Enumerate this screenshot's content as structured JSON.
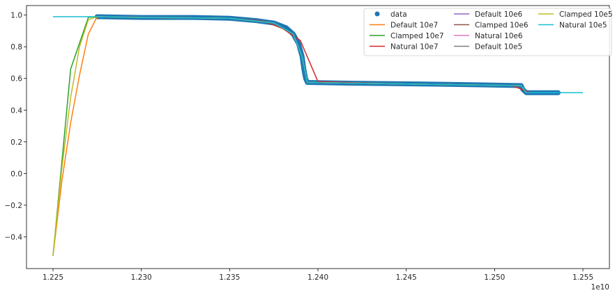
{
  "chart_data": {
    "type": "line",
    "title": "",
    "xlabel": "",
    "ylabel": "",
    "x_offset_label": "1e10",
    "xlim": [
      1.2235,
      1.2565
    ],
    "ylim": [
      -0.6,
      1.06
    ],
    "grid": false,
    "legend_placement": "top-right",
    "legend_columns": 3,
    "x_ticks": [
      1.225,
      1.23,
      1.235,
      1.24,
      1.245,
      1.25,
      1.255
    ],
    "x_tick_labels": [
      "1.225",
      "1.230",
      "1.235",
      "1.240",
      "1.245",
      "1.250",
      "1.255"
    ],
    "y_ticks": [
      -0.4,
      -0.2,
      0.0,
      0.2,
      0.4,
      0.6,
      0.8,
      1.0
    ],
    "y_tick_labels": [
      "−0.4",
      "−0.2",
      "0.0",
      "0.2",
      "0.4",
      "0.6",
      "0.8",
      "1.0"
    ],
    "data_points": {
      "name": "data",
      "color": "#1f77b4",
      "x_range": [
        1.2275,
        1.2536
      ],
      "description_points": [
        [
          1.2275,
          0.99
        ],
        [
          1.23,
          0.985
        ],
        [
          1.233,
          0.985
        ],
        [
          1.235,
          0.98
        ],
        [
          1.2365,
          0.965
        ],
        [
          1.2375,
          0.95
        ],
        [
          1.2382,
          0.92
        ],
        [
          1.2386,
          0.88
        ],
        [
          1.2389,
          0.82
        ],
        [
          1.2391,
          0.74
        ],
        [
          1.2392,
          0.66
        ],
        [
          1.2393,
          0.6
        ],
        [
          1.2394,
          0.575
        ],
        [
          1.242,
          0.57
        ],
        [
          1.246,
          0.565
        ],
        [
          1.249,
          0.56
        ],
        [
          1.2515,
          0.555
        ],
        [
          1.2516,
          0.53
        ],
        [
          1.2518,
          0.51
        ],
        [
          1.2536,
          0.51
        ]
      ]
    },
    "series": [
      {
        "name": "Default 10e7",
        "color": "#ff7f0e",
        "points": [
          [
            1.225,
            -0.52
          ],
          [
            1.2255,
            -0.05
          ],
          [
            1.226,
            0.32
          ],
          [
            1.2265,
            0.62
          ],
          [
            1.227,
            0.88
          ],
          [
            1.2275,
            0.99
          ],
          [
            1.23,
            0.985
          ],
          [
            1.235,
            0.98
          ],
          [
            1.2375,
            0.95
          ],
          [
            1.2386,
            0.88
          ],
          [
            1.2391,
            0.74
          ],
          [
            1.2394,
            0.575
          ],
          [
            1.245,
            0.565
          ],
          [
            1.2515,
            0.555
          ],
          [
            1.2518,
            0.51
          ],
          [
            1.2536,
            0.51
          ]
        ]
      },
      {
        "name": "Clamped 10e7",
        "color": "#2ca02c",
        "points": [
          [
            1.225,
            -0.52
          ],
          [
            1.226,
            0.66
          ],
          [
            1.227,
            0.985
          ],
          [
            1.2275,
            0.99
          ],
          [
            1.23,
            0.985
          ],
          [
            1.235,
            0.98
          ],
          [
            1.2375,
            0.95
          ],
          [
            1.2386,
            0.88
          ],
          [
            1.2391,
            0.74
          ],
          [
            1.2394,
            0.575
          ],
          [
            1.245,
            0.565
          ],
          [
            1.2515,
            0.555
          ],
          [
            1.2518,
            0.51
          ],
          [
            1.2536,
            0.51
          ]
        ]
      },
      {
        "name": "Natural 10e7",
        "color": "#d62728",
        "points": [
          [
            1.2275,
            0.99
          ],
          [
            1.23,
            0.985
          ],
          [
            1.235,
            0.98
          ],
          [
            1.237,
            0.96
          ],
          [
            1.238,
            0.915
          ],
          [
            1.239,
            0.84
          ],
          [
            1.24,
            0.58
          ],
          [
            1.245,
            0.565
          ],
          [
            1.251,
            0.555
          ],
          [
            1.252,
            0.51
          ],
          [
            1.2536,
            0.51
          ]
        ]
      },
      {
        "name": "Default 10e6",
        "color": "#9467bd",
        "points": [
          [
            1.2275,
            0.99
          ],
          [
            1.235,
            0.98
          ],
          [
            1.2375,
            0.95
          ],
          [
            1.2386,
            0.88
          ],
          [
            1.2391,
            0.74
          ],
          [
            1.2394,
            0.575
          ],
          [
            1.245,
            0.565
          ],
          [
            1.2515,
            0.555
          ],
          [
            1.2518,
            0.51
          ],
          [
            1.2536,
            0.51
          ]
        ]
      },
      {
        "name": "Clamped 10e6",
        "color": "#8c564b",
        "points": [
          [
            1.2275,
            0.99
          ],
          [
            1.235,
            0.98
          ],
          [
            1.2375,
            0.95
          ],
          [
            1.2386,
            0.88
          ],
          [
            1.2391,
            0.74
          ],
          [
            1.2394,
            0.575
          ],
          [
            1.245,
            0.565
          ],
          [
            1.2515,
            0.555
          ],
          [
            1.2518,
            0.51
          ],
          [
            1.2536,
            0.51
          ]
        ]
      },
      {
        "name": "Natural 10e6",
        "color": "#e377c2",
        "points": [
          [
            1.2275,
            0.99
          ],
          [
            1.235,
            0.98
          ],
          [
            1.2375,
            0.95
          ],
          [
            1.2386,
            0.88
          ],
          [
            1.2391,
            0.74
          ],
          [
            1.2394,
            0.575
          ],
          [
            1.245,
            0.565
          ],
          [
            1.2515,
            0.555
          ],
          [
            1.2518,
            0.51
          ],
          [
            1.2536,
            0.51
          ]
        ]
      },
      {
        "name": "Default 10e5",
        "color": "#7f7f7f",
        "points": [
          [
            1.2275,
            0.99
          ],
          [
            1.235,
            0.98
          ],
          [
            1.2375,
            0.95
          ],
          [
            1.2386,
            0.88
          ],
          [
            1.2391,
            0.74
          ],
          [
            1.2394,
            0.575
          ],
          [
            1.245,
            0.565
          ],
          [
            1.2515,
            0.555
          ],
          [
            1.2518,
            0.51
          ],
          [
            1.2536,
            0.51
          ]
        ]
      },
      {
        "name": "Clamped 10e5",
        "color": "#bcbd22",
        "points": [
          [
            1.225,
            -0.52
          ],
          [
            1.2255,
            0.03
          ],
          [
            1.226,
            0.48
          ],
          [
            1.2265,
            0.8
          ],
          [
            1.227,
            0.97
          ],
          [
            1.2275,
            0.99
          ],
          [
            1.23,
            0.985
          ],
          [
            1.235,
            0.98
          ],
          [
            1.2375,
            0.95
          ],
          [
            1.2386,
            0.88
          ],
          [
            1.2391,
            0.74
          ],
          [
            1.2394,
            0.575
          ],
          [
            1.245,
            0.565
          ],
          [
            1.2515,
            0.555
          ],
          [
            1.2518,
            0.51
          ],
          [
            1.2536,
            0.51
          ]
        ]
      },
      {
        "name": "Natural 10e5",
        "color": "#17becf",
        "points": [
          [
            1.225,
            0.99
          ],
          [
            1.2275,
            0.99
          ],
          [
            1.23,
            0.985
          ],
          [
            1.235,
            0.98
          ],
          [
            1.2375,
            0.95
          ],
          [
            1.2386,
            0.88
          ],
          [
            1.2391,
            0.74
          ],
          [
            1.2394,
            0.575
          ],
          [
            1.245,
            0.565
          ],
          [
            1.2515,
            0.555
          ],
          [
            1.2518,
            0.51
          ],
          [
            1.2536,
            0.51
          ],
          [
            1.255,
            0.51
          ]
        ]
      }
    ]
  }
}
